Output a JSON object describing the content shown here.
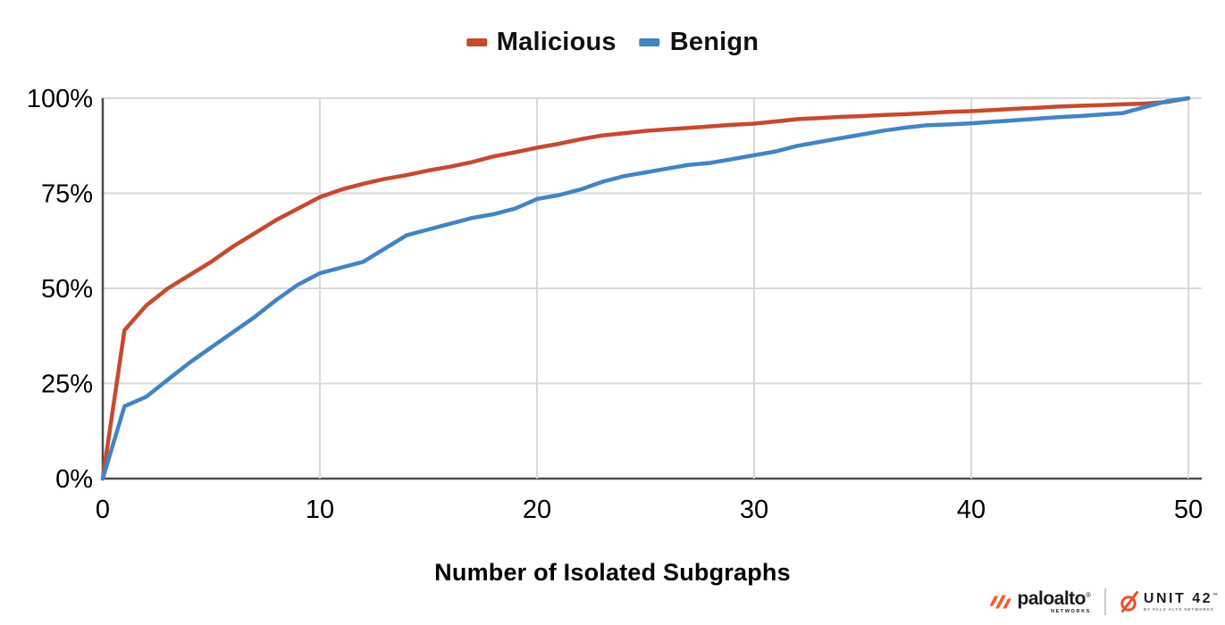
{
  "chart_data": {
    "type": "line",
    "title": "",
    "xlabel": "Number of Isolated Subgraphs",
    "ylabel": "",
    "xlim": [
      0,
      50
    ],
    "ylim": [
      0,
      100
    ],
    "grid": true,
    "legend_position": "top-center",
    "x_ticks": [
      {
        "label": "0",
        "value": 0
      },
      {
        "label": "10",
        "value": 10
      },
      {
        "label": "20",
        "value": 20
      },
      {
        "label": "30",
        "value": 30
      },
      {
        "label": "40",
        "value": 40
      },
      {
        "label": "50",
        "value": 50
      }
    ],
    "y_ticks": [
      {
        "label": "0%",
        "value": 0
      },
      {
        "label": "25%",
        "value": 25
      },
      {
        "label": "50%",
        "value": 50
      },
      {
        "label": "75%",
        "value": 75
      },
      {
        "label": "100%",
        "value": 100
      }
    ],
    "x": [
      0,
      1,
      2,
      3,
      4,
      5,
      6,
      7,
      8,
      9,
      10,
      11,
      12,
      13,
      14,
      15,
      16,
      17,
      18,
      19,
      20,
      21,
      22,
      23,
      24,
      25,
      26,
      27,
      28,
      29,
      30,
      31,
      32,
      33,
      34,
      35,
      36,
      37,
      38,
      39,
      40,
      41,
      42,
      43,
      44,
      45,
      46,
      47,
      48,
      49,
      50
    ],
    "series": [
      {
        "name": "Malicious",
        "color": "#c64a2e",
        "values": [
          0,
          39,
          45.5,
          50,
          53.5,
          57,
          61,
          64.5,
          68,
          71,
          74,
          76,
          77.5,
          78.8,
          79.8,
          81,
          82,
          83.2,
          84.7,
          85.8,
          87,
          88,
          89.2,
          90.2,
          90.8,
          91.4,
          91.8,
          92.2,
          92.6,
          93,
          93.3,
          93.9,
          94.5,
          94.8,
          95.1,
          95.3,
          95.6,
          95.8,
          96.1,
          96.4,
          96.6,
          96.9,
          97.2,
          97.5,
          97.8,
          98,
          98.2,
          98.4,
          98.6,
          99,
          100
        ]
      },
      {
        "name": "Benign",
        "color": "#4284c5",
        "values": [
          0,
          19,
          21.5,
          26,
          30.5,
          34.5,
          38.5,
          42.5,
          47,
          51,
          54,
          55.5,
          57,
          60.5,
          64,
          65.5,
          67,
          68.5,
          69.5,
          71,
          73.5,
          74.5,
          76,
          78,
          79.5,
          80.5,
          81.5,
          82.5,
          83,
          84,
          85,
          86,
          87.5,
          88.5,
          89.5,
          90.5,
          91.5,
          92.3,
          92.9,
          93.1,
          93.4,
          93.8,
          94.2,
          94.6,
          95,
          95.3,
          95.7,
          96.1,
          97.7,
          99.2,
          100
        ]
      }
    ],
    "colors": {
      "gridline": "#d9d9d9",
      "axis": "#4d4d4d",
      "tick_text": "#000000"
    }
  },
  "footer": {
    "paloalto": {
      "brand": "paloalto",
      "registered": "®",
      "sub": "NETWORKS"
    },
    "unit42": {
      "brand": "UNIT 42",
      "trademark": "™",
      "sub": "BY PALO ALTO NETWORKS"
    },
    "brand_orange": "#fa582d"
  }
}
